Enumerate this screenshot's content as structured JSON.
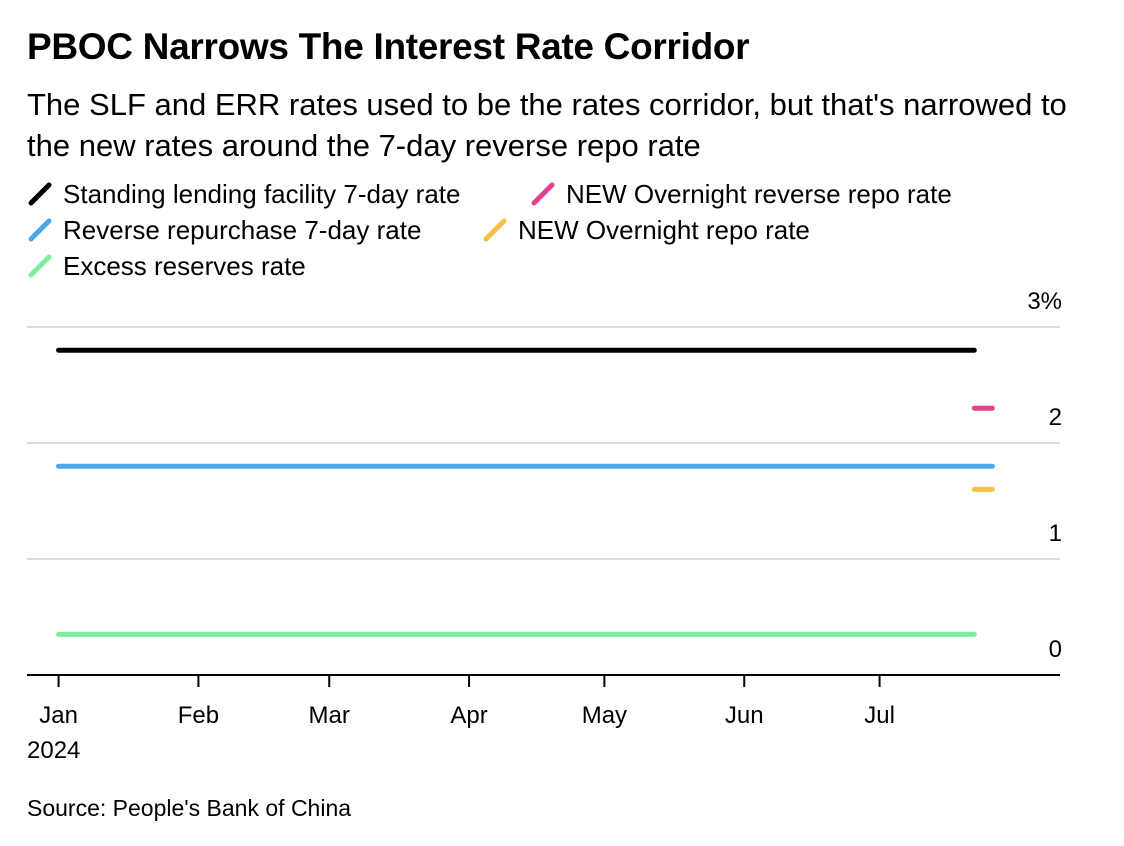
{
  "header": {
    "title": "PBOC Narrows The Interest Rate Corridor",
    "subtitle": "The SLF and ERR rates used to be the rates corridor, but that's narrowed to the new rates around the 7-day reverse repo rate"
  },
  "source": "Source: People's Bank of China",
  "chart_data": {
    "type": "line",
    "title": "PBOC Narrows The Interest Rate Corridor",
    "subtitle": "The SLF and ERR rates used to be the rates corridor, but that's narrowed to the new rates around the 7-day reverse repo rate",
    "x_axis": {
      "type": "date",
      "range": [
        "2023-12-25",
        "2024-08-10"
      ],
      "ticks": [
        {
          "date": "2024-01-01",
          "label": "Jan",
          "sublabel": "2024"
        },
        {
          "date": "2024-02-01",
          "label": "Feb"
        },
        {
          "date": "2024-03-01",
          "label": "Mar"
        },
        {
          "date": "2024-04-01",
          "label": "Apr"
        },
        {
          "date": "2024-05-01",
          "label": "May"
        },
        {
          "date": "2024-06-01",
          "label": "Jun"
        },
        {
          "date": "2024-07-01",
          "label": "Jul"
        }
      ]
    },
    "y_axis": {
      "range": [
        0,
        3
      ],
      "position": "right",
      "ticks": [
        {
          "value": 0,
          "label": "0"
        },
        {
          "value": 1,
          "label": "1"
        },
        {
          "value": 2,
          "label": "2"
        },
        {
          "value": 3,
          "label": "3%"
        }
      ]
    },
    "grid": true,
    "legend_position": "top",
    "series": [
      {
        "name": "Standing lending facility 7-day rate",
        "color": "#000000",
        "points": [
          {
            "x": "2024-01-01",
            "y": 2.8
          },
          {
            "x": "2024-07-22",
            "y": 2.8
          }
        ]
      },
      {
        "name": "NEW Overnight reverse repo rate",
        "color": "#e8418c",
        "points": [
          {
            "x": "2024-07-22",
            "y": 2.3
          },
          {
            "x": "2024-07-26",
            "y": 2.3
          }
        ]
      },
      {
        "name": "Reverse repurchase 7-day rate",
        "color": "#4ba8f0",
        "points": [
          {
            "x": "2024-01-01",
            "y": 1.8
          },
          {
            "x": "2024-07-26",
            "y": 1.8
          }
        ]
      },
      {
        "name": "NEW Overnight repo rate",
        "color": "#f6c244",
        "points": [
          {
            "x": "2024-07-22",
            "y": 1.6
          },
          {
            "x": "2024-07-26",
            "y": 1.6
          }
        ]
      },
      {
        "name": "Excess reserves rate",
        "color": "#7df09b",
        "points": [
          {
            "x": "2024-01-01",
            "y": 0.35
          },
          {
            "x": "2024-07-22",
            "y": 0.35
          }
        ]
      }
    ]
  }
}
